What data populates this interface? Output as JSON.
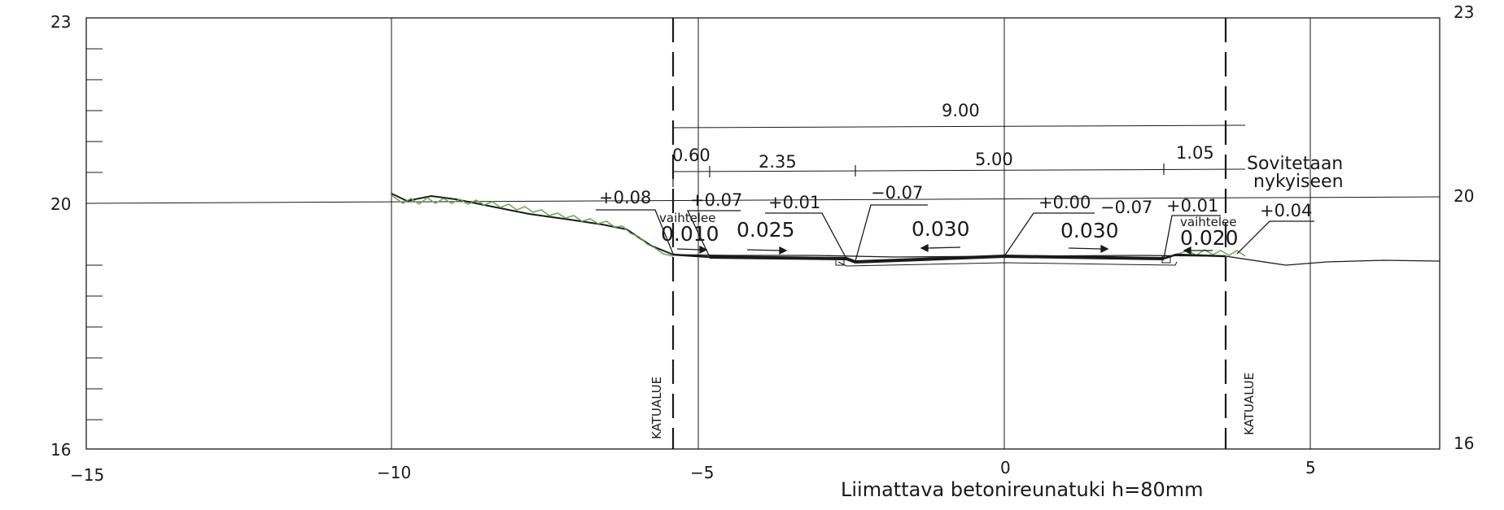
{
  "x_axis": {
    "ticks": [
      {
        "value": -15,
        "label": "−15"
      },
      {
        "value": -10,
        "label": "−10"
      },
      {
        "value": -5,
        "label": "−5"
      },
      {
        "value": 0,
        "label": "0"
      },
      {
        "value": 5,
        "label": "5"
      }
    ]
  },
  "y_axis": {
    "left_labels": [
      "23",
      "20",
      "16"
    ],
    "right_labels": [
      "23",
      "20",
      "16"
    ]
  },
  "dimensions": {
    "total": "9.00",
    "segments": [
      "0.60",
      "2.35",
      "5.00",
      "1.05"
    ]
  },
  "elevations": [
    "+0.08",
    "+0.07",
    "+0.01",
    "−0.07",
    "+0.00",
    "−0.07",
    "+0.01",
    "+0.04"
  ],
  "slopes": [
    "0.010",
    "0.025",
    "0.030",
    "0.030",
    "0.020"
  ],
  "notes": {
    "vaihtelee_left": "vaihtelee",
    "vaihtelee_right": "vaihtelee",
    "sovitetaan_line1": "Sovitetaan",
    "sovitetaan_line2": "nykyiseen",
    "katualue_left": "KATUALUE",
    "katualue_right": "KATUALUE"
  },
  "caption": "Liimattava betonireunatuki h=80mm",
  "colors": {
    "line": "#1a1a1a",
    "grass": "#6aa84f"
  }
}
